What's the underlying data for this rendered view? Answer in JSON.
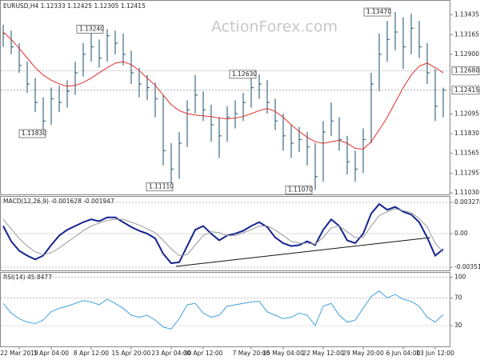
{
  "chart_data": [
    {
      "type": "ohlc",
      "title": "EURUSD,H4 1.12333 1.12425 1.12305 1.12415",
      "watermark": "ActionForex.com",
      "color": "#3d6b85",
      "categories": [
        null,
        null,
        "22 Mar 2019",
        null,
        null,
        null,
        "1 Apr 04:00",
        null,
        null,
        null,
        null,
        "8 Apr 12:00",
        null,
        null,
        null,
        null,
        "15 Apr 20:00",
        null,
        null,
        null,
        null,
        "23 Apr 04:00",
        null,
        null,
        null,
        "30 Apr 12:00",
        null,
        null,
        null,
        null,
        null,
        "7 May 20:00",
        null,
        null,
        null,
        "15 May 04:00",
        null,
        null,
        null,
        null,
        "22 May 12:00",
        null,
        null,
        null,
        null,
        "29 May 20:00",
        null,
        null,
        null,
        null,
        "6 Jun 04:00",
        null,
        null,
        null,
        "13 Jun 12:00",
        null
      ],
      "high": [
        1.133,
        1.1322,
        1.1305,
        1.128,
        1.1258,
        1.1232,
        1.1245,
        1.1248,
        1.1255,
        1.128,
        1.1305,
        1.1318,
        1.131,
        1.1324,
        1.1322,
        1.1318,
        1.1295,
        1.1272,
        1.1262,
        1.1252,
        1.1235,
        1.117,
        1.1185,
        1.1228,
        1.1262,
        1.124,
        1.1222,
        1.1205,
        1.122,
        1.1228,
        1.1238,
        1.1258,
        1.1263,
        1.1255,
        1.123,
        1.121,
        1.1195,
        1.1192,
        1.1185,
        1.117,
        1.12,
        1.1225,
        1.1205,
        1.118,
        1.116,
        1.119,
        1.1265,
        1.1318,
        1.1335,
        1.1347,
        1.134,
        1.1345,
        1.1335,
        1.1305,
        1.127,
        1.1245
      ],
      "low": [
        1.13,
        1.129,
        1.1265,
        1.1238,
        1.1212,
        1.1183,
        1.1195,
        1.1212,
        1.1218,
        1.1235,
        1.126,
        1.128,
        1.1272,
        1.128,
        1.129,
        1.1275,
        1.125,
        1.1232,
        1.1228,
        1.1205,
        1.114,
        1.1111,
        1.1122,
        1.1165,
        1.121,
        1.12,
        1.1172,
        1.115,
        1.1172,
        1.119,
        1.12,
        1.1218,
        1.123,
        1.121,
        1.1188,
        1.116,
        1.115,
        1.1158,
        1.114,
        1.1107,
        1.1118,
        1.118,
        1.116,
        1.1128,
        1.1118,
        1.113,
        1.117,
        1.124,
        1.128,
        1.1295,
        1.127,
        1.129,
        1.1285,
        1.125,
        1.12,
        1.1205
      ],
      "close": [
        1.1318,
        1.13,
        1.1275,
        1.125,
        1.1225,
        1.12,
        1.123,
        1.1225,
        1.124,
        1.1265,
        1.129,
        1.13,
        1.1285,
        1.1315,
        1.1305,
        1.129,
        1.1265,
        1.125,
        1.1245,
        1.123,
        1.116,
        1.1135,
        1.117,
        1.1215,
        1.1235,
        1.1215,
        1.1195,
        1.118,
        1.1205,
        1.121,
        1.1225,
        1.1245,
        1.125,
        1.1225,
        1.12,
        1.118,
        1.117,
        1.1175,
        1.1165,
        1.1125,
        1.1185,
        1.12,
        1.1175,
        1.1145,
        1.1135,
        1.1175,
        1.125,
        1.129,
        1.131,
        1.132,
        1.13,
        1.1325,
        1.13,
        1.1265,
        1.122,
        1.12415
      ],
      "overlay": {
        "color": "#e0302c",
        "values": [
          1.132,
          1.131,
          1.1298,
          1.1285,
          1.1272,
          1.1262,
          1.1255,
          1.125,
          1.1247,
          1.1248,
          1.1252,
          1.1258,
          1.1265,
          1.1272,
          1.1278,
          1.128,
          1.1276,
          1.1268,
          1.1258,
          1.1248,
          1.1235,
          1.1222,
          1.1214,
          1.121,
          1.1208,
          1.1207,
          1.1206,
          1.1204,
          1.1203,
          1.1204,
          1.1206,
          1.121,
          1.1214,
          1.1217,
          1.1213,
          1.1205,
          1.1195,
          1.1186,
          1.1178,
          1.1172,
          1.117,
          1.1172,
          1.1174,
          1.117,
          1.1163,
          1.1162,
          1.1172,
          1.1188,
          1.1205,
          1.1225,
          1.1245,
          1.1262,
          1.1274,
          1.1278,
          1.1272,
          1.1265
        ]
      },
      "ylim": [
        1.1101,
        1.136
      ],
      "yticks": [
        1.13435,
        1.13165,
        {
          "value": 1.129,
          "label": "1.12900"
        },
        1.12095,
        {
          "value": 1.1183,
          "label": "1.11830"
        },
        1.11565,
        1.11295,
        {
          "value": 1.1103,
          "label": "1.11030"
        }
      ],
      "levels": [
        {
          "value": 1.1268,
          "label": "1.12680"
        },
        {
          "value": 1.12415,
          "label": "1.12415"
        }
      ],
      "annotations": [
        {
          "value": 1.1324,
          "label": "1.13240"
        },
        {
          "value": 1.1183,
          "label": "1.11830"
        },
        {
          "value": 1.1111,
          "label": "1.11110"
        },
        {
          "value": 1.1263,
          "label": "1.12630"
        },
        {
          "value": 1.1107,
          "label": "1.11070"
        },
        {
          "value": 1.1347,
          "label": "1.13470"
        }
      ]
    },
    {
      "type": "line",
      "title": "MACD(12,26,9) -0.001628 -0.001947",
      "series": [
        {
          "color": "#14238f",
          "values": [
            0.0008,
            -0.0008,
            -0.0018,
            -0.0023,
            -0.0027,
            -0.0023,
            -0.0012,
            -0.0002,
            0.0004,
            0.0008,
            0.0012,
            0.0015,
            0.0013,
            0.0017,
            0.0017,
            0.0012,
            0.0007,
            0.0003,
            0,
            -0.0005,
            -0.0021,
            -0.0031,
            -0.003,
            -0.0013,
            0.0004,
            0.0008,
            0,
            -0.0007,
            -0.0002,
            0,
            0.0003,
            0.0008,
            0.0012,
            0.0007,
            -0.0004,
            -0.001,
            -0.0013,
            -0.0012,
            -0.0008,
            -0.0012,
            0.0004,
            0.0015,
            0.0008,
            -0.0007,
            -0.001,
            0,
            0.0021,
            0.0031,
            0.0025,
            0.0028,
            0.0023,
            0.002,
            0.0012,
            -0.0004,
            -0.0023,
            -0.001628
          ]
        },
        {
          "color": "#9a9a9a",
          "values": [
            0.0015,
            0.0005,
            -0.0005,
            -0.0013,
            -0.0019,
            -0.0022,
            -0.002,
            -0.0015,
            -0.0009,
            -0.0003,
            0.0003,
            0.0008,
            0.0011,
            0.0014,
            0.0015,
            0.0015,
            0.0012,
            0.0009,
            0.0005,
            0.0001,
            -0.0007,
            -0.0016,
            -0.0023,
            -0.0022,
            -0.0012,
            -0.0002,
            0.0002,
            0.0001,
            -0.0002,
            -0.0002,
            0.0001,
            0.0004,
            0.0008,
            0.0008,
            0.0004,
            -0.0002,
            -0.0008,
            -0.001,
            -0.001,
            -0.0011,
            -0.0004,
            0.0006,
            0.0008,
            0.0002,
            -0.0004,
            -0.0004,
            0.0008,
            0.0019,
            0.0023,
            0.0026,
            0.0024,
            0.0022,
            0.0016,
            0.0007,
            -0.001,
            -0.001947
          ]
        }
      ],
      "ylim": [
        -0.00385,
        0.00386
      ],
      "yticks": [
        0.003278,
        {
          "value": 0,
          "label": "0.00"
        },
        -0.003519
      ]
    },
    {
      "type": "line",
      "title": "RSI(14) 45.8477",
      "series": [
        {
          "color": "#3fa0e0",
          "values": [
            62,
            48,
            40,
            35,
            33,
            38,
            50,
            55,
            58,
            62,
            66,
            64,
            60,
            68,
            62,
            55,
            45,
            42,
            45,
            38,
            28,
            25,
            40,
            60,
            62,
            48,
            42,
            45,
            58,
            60,
            62,
            64,
            65,
            50,
            45,
            40,
            42,
            48,
            45,
            30,
            58,
            62,
            45,
            35,
            38,
            55,
            72,
            80,
            70,
            75,
            68,
            65,
            58,
            42,
            35,
            45.8477
          ]
        }
      ],
      "ylim": [
        0,
        105
      ],
      "yticks": [
        100,
        70,
        30
      ]
    }
  ]
}
